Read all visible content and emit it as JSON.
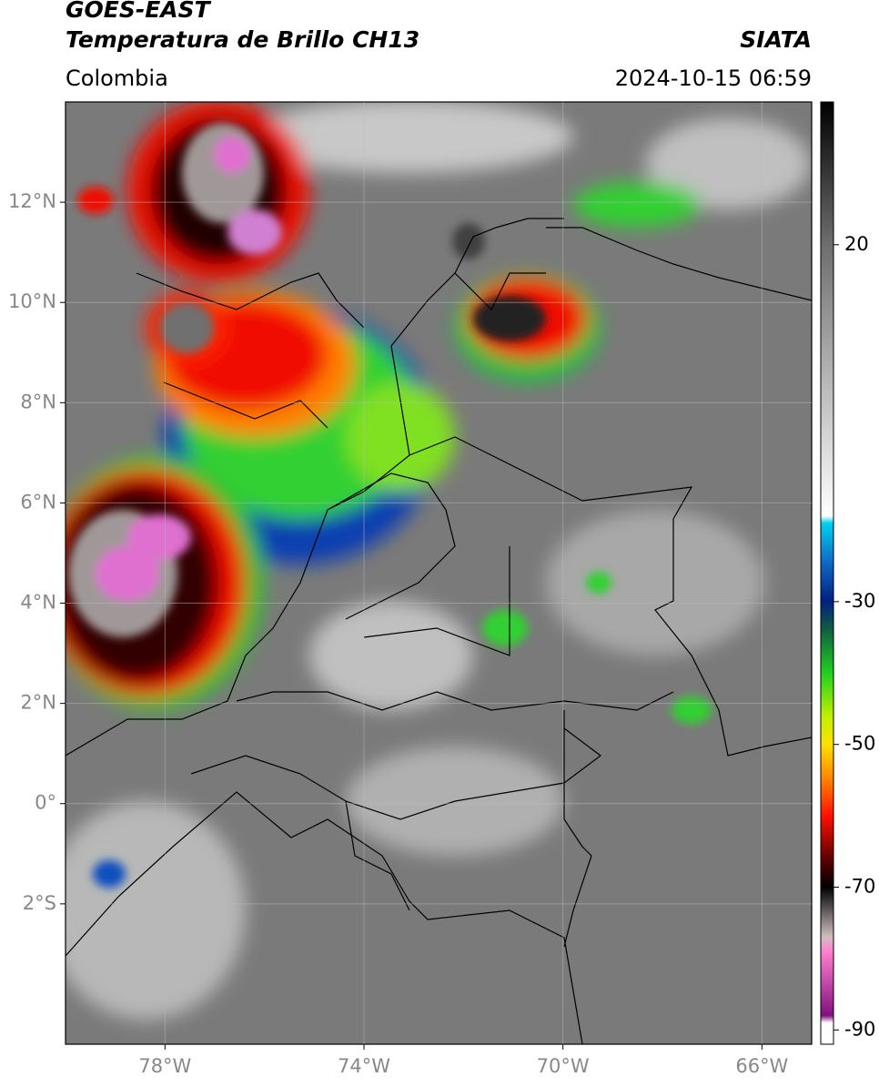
{
  "chart_data": {
    "type": "map",
    "title": "GOES-EAST",
    "subtitle": "Temperatura de Brillo CH13",
    "source": "SIATA",
    "region": "Colombia",
    "datetime": "2024-10-15 06:59",
    "xlim": [
      -80,
      -65
    ],
    "ylim": [
      -4.8,
      14
    ],
    "xticks": [
      {
        "value": -78,
        "label": "78°W"
      },
      {
        "value": -74,
        "label": "74°W"
      },
      {
        "value": -70,
        "label": "70°W"
      },
      {
        "value": -66,
        "label": "66°W"
      }
    ],
    "yticks": [
      {
        "value": 12,
        "label": "12°N"
      },
      {
        "value": 10,
        "label": "10°N"
      },
      {
        "value": 8,
        "label": "8°N"
      },
      {
        "value": 6,
        "label": "6°N"
      },
      {
        "value": 4,
        "label": "4°N"
      },
      {
        "value": 2,
        "label": "2°N"
      },
      {
        "value": 0,
        "label": "0°"
      },
      {
        "value": -2,
        "label": "2°S"
      }
    ],
    "grid": true,
    "colorbar": {
      "lim": [
        -92,
        40
      ],
      "ticks": [
        20,
        -30,
        -50,
        -70,
        -90
      ],
      "stops": [
        {
          "value": 40,
          "color": "#000000"
        },
        {
          "value": 20,
          "color": "#6e6e6e"
        },
        {
          "value": -18,
          "color": "#ffffff"
        },
        {
          "value": -19,
          "color": "#00d0f0"
        },
        {
          "value": -25,
          "color": "#1060c0"
        },
        {
          "value": -30,
          "color": "#002080"
        },
        {
          "value": -34,
          "color": "#106040"
        },
        {
          "value": -40,
          "color": "#20d020"
        },
        {
          "value": -46,
          "color": "#c0f000"
        },
        {
          "value": -50,
          "color": "#ffe000"
        },
        {
          "value": -55,
          "color": "#ff8000"
        },
        {
          "value": -60,
          "color": "#ff1000"
        },
        {
          "value": -66,
          "color": "#600000"
        },
        {
          "value": -70,
          "color": "#000000"
        },
        {
          "value": -77,
          "color": "#d0c0c0"
        },
        {
          "value": -79,
          "color": "#ff80d0"
        },
        {
          "value": -88,
          "color": "#801080"
        },
        {
          "value": -89,
          "color": "#ffffff"
        }
      ]
    }
  }
}
